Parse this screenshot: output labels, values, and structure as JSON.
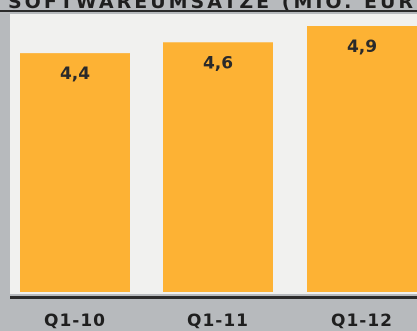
{
  "chart_data": {
    "type": "bar",
    "title": "SOFTWAREUMSÄTZE (MIO. EUR)",
    "categories": [
      "Q1-10",
      "Q1-11",
      "Q1-12"
    ],
    "values": [
      4.4,
      4.6,
      4.9
    ],
    "value_labels": [
      "4,4",
      "4,6",
      "4,9"
    ],
    "xlabel": "",
    "ylabel": "",
    "grid": false,
    "legend": "none"
  },
  "colors": {
    "bar": "#fdb234",
    "plot_background": "#f1f1ef",
    "frame_background": "#b7babd",
    "axis_line": "#2b2b2b",
    "text": "#1f1f1f"
  }
}
